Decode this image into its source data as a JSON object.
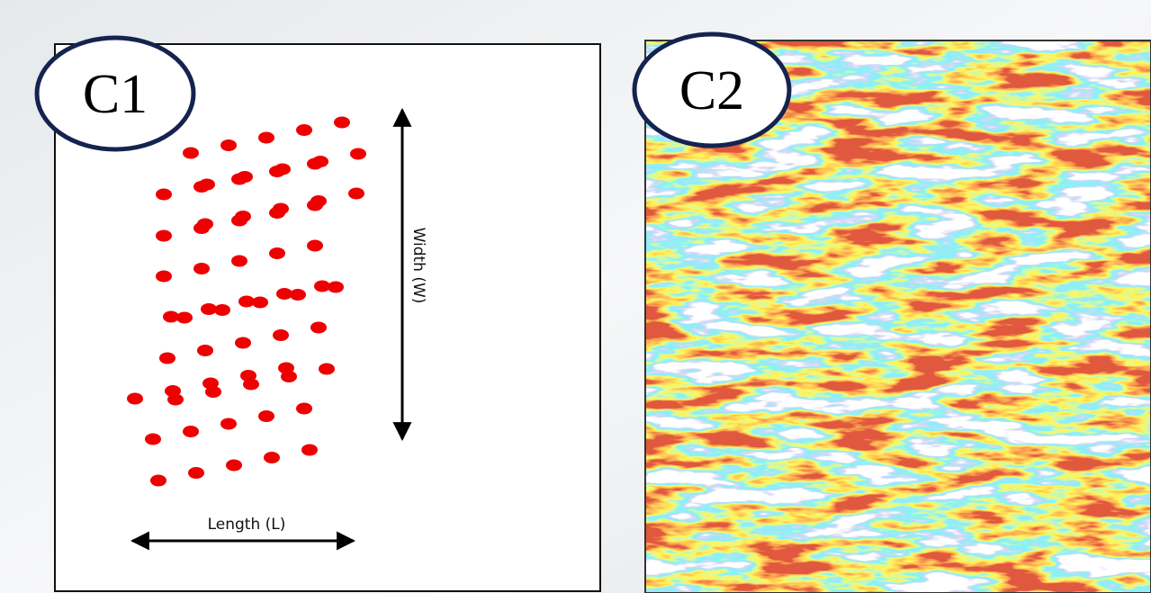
{
  "panels": [
    {
      "label": "C1",
      "width_label": "Width (W)",
      "length_label": "Length (L)"
    },
    {
      "label": "C2"
    }
  ]
}
